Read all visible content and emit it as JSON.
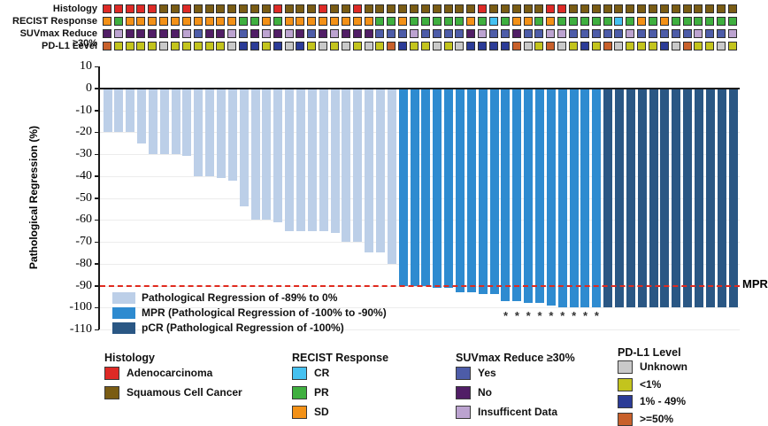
{
  "colors": {
    "A": "#de2a26",
    "S": "#7a5c14",
    "SD": "#f39117",
    "PR": "#3faf3f",
    "CR": "#45c1f0",
    "Y": "#4d5ca8",
    "N": "#511e66",
    "I": "#bca3d0",
    "U": "#c9c9c9",
    "L": "#c3c41d",
    "M": "#2b3b97",
    "H": "#c8602b",
    "bar_light": "#bccfe8",
    "bar_mpr": "#2e8bd0",
    "bar_pcr": "#2a5784",
    "mpr_line": "#e02a1e",
    "zero_line": "#1a1a1a",
    "grid": "#ececec"
  },
  "tracks": {
    "labels": [
      "Histology",
      "RECIST Response",
      "SUVmax Reduce ≥30%",
      "PD-L1 Level"
    ],
    "rows": [
      [
        "A",
        "A",
        "A",
        "A",
        "A",
        "S",
        "S",
        "A",
        "S",
        "S",
        "S",
        "S",
        "S",
        "S",
        "S",
        "A",
        "S",
        "S",
        "S",
        "A",
        "S",
        "S",
        "A",
        "S",
        "S",
        "S",
        "S",
        "S",
        "S",
        "S",
        "S",
        "S",
        "S",
        "A",
        "S",
        "S",
        "S",
        "S",
        "S",
        "A",
        "A",
        "S",
        "S",
        "S",
        "S",
        "S",
        "S",
        "S",
        "S",
        "S",
        "S",
        "S",
        "S",
        "S",
        "S",
        "S"
      ],
      [
        "SD",
        "PR",
        "SD",
        "SD",
        "SD",
        "SD",
        "SD",
        "SD",
        "SD",
        "SD",
        "SD",
        "SD",
        "PR",
        "PR",
        "SD",
        "PR",
        "SD",
        "SD",
        "SD",
        "SD",
        "SD",
        "SD",
        "SD",
        "SD",
        "PR",
        "PR",
        "SD",
        "PR",
        "PR",
        "PR",
        "PR",
        "PR",
        "SD",
        "PR",
        "CR",
        "PR",
        "SD",
        "SD",
        "PR",
        "SD",
        "PR",
        "PR",
        "PR",
        "PR",
        "PR",
        "CR",
        "PR",
        "SD",
        "PR",
        "SD",
        "PR",
        "PR",
        "PR",
        "PR",
        "PR",
        "PR"
      ],
      [
        "N",
        "I",
        "N",
        "N",
        "N",
        "N",
        "N",
        "I",
        "Y",
        "N",
        "N",
        "I",
        "Y",
        "N",
        "I",
        "N",
        "I",
        "N",
        "Y",
        "N",
        "I",
        "N",
        "N",
        "N",
        "Y",
        "Y",
        "Y",
        "I",
        "Y",
        "Y",
        "Y",
        "Y",
        "N",
        "I",
        "Y",
        "Y",
        "N",
        "Y",
        "Y",
        "I",
        "I",
        "Y",
        "Y",
        "Y",
        "Y",
        "Y",
        "I",
        "Y",
        "Y",
        "Y",
        "Y",
        "Y",
        "I",
        "Y",
        "Y",
        "I"
      ],
      [
        "H",
        "L",
        "L",
        "L",
        "L",
        "U",
        "L",
        "L",
        "L",
        "L",
        "L",
        "U",
        "M",
        "M",
        "L",
        "M",
        "U",
        "M",
        "L",
        "U",
        "L",
        "U",
        "L",
        "U",
        "L",
        "H",
        "M",
        "L",
        "L",
        "U",
        "L",
        "U",
        "M",
        "M",
        "M",
        "M",
        "H",
        "U",
        "L",
        "H",
        "U",
        "L",
        "M",
        "L",
        "H",
        "U",
        "L",
        "L",
        "L",
        "M",
        "U",
        "H",
        "L",
        "L",
        "U",
        "L"
      ]
    ]
  },
  "chart_data": {
    "type": "bar",
    "title": "",
    "ylabel": "Pathological Regression (%)",
    "ylim": [
      -110,
      10
    ],
    "yticks": [
      10,
      0,
      -10,
      -20,
      -30,
      -40,
      -50,
      -60,
      -70,
      -80,
      -90,
      -100,
      -110
    ],
    "grid": true,
    "n_patients": 56,
    "values": [
      -20,
      -20,
      -20,
      -25,
      -30,
      -30,
      -30,
      -31,
      -40,
      -40,
      -41,
      -42,
      -54,
      -60,
      -60,
      -61,
      -65,
      -65,
      -65,
      -65,
      -66,
      -70,
      -70,
      -75,
      -75,
      -80,
      -90,
      -90,
      -90,
      -91,
      -91,
      -93,
      -93,
      -94,
      -94,
      -97,
      -97,
      -98,
      -98,
      -99,
      -100,
      -100,
      -100,
      -100,
      -100,
      -100,
      -100,
      -100,
      -100,
      -100,
      -100,
      -100,
      -100,
      -100,
      -100,
      -100
    ],
    "group_counts": {
      "light": 26,
      "mpr": 18,
      "pcr": 12
    },
    "group_color_keys": {
      "light": "bar_light",
      "mpr": "bar_mpr",
      "pcr": "bar_pcr"
    },
    "asterisk_columns_1based": [
      36,
      37,
      38,
      39,
      40,
      41,
      42,
      43,
      44
    ],
    "asterisk_char": "*",
    "mpr_threshold": -90,
    "mpr_label": "MPR",
    "annotations": {
      "histology_codes": {
        "A": "Adenocarcinoma",
        "S": "Squamous Cell Cancer"
      },
      "recist_codes": {
        "CR": "CR",
        "PR": "PR",
        "SD": "SD"
      },
      "suvmax_codes": {
        "Y": "Yes",
        "N": "No",
        "I": "Insufficent Data"
      },
      "pdl1_codes": {
        "U": "Unknown",
        "L": "<1%",
        "M": "1% - 49%",
        "H": ">=50%"
      }
    }
  },
  "inchart_legend": [
    {
      "color_key": "bar_light",
      "label": "Pathological Regression of -89% to 0%"
    },
    {
      "color_key": "bar_mpr",
      "label": "MPR (Pathological Regression of -100% to -90%)"
    },
    {
      "color_key": "bar_pcr",
      "label": "pCR (Pathological Regression of -100%)"
    }
  ],
  "bottom_legend": [
    {
      "title": "Histology",
      "items": [
        {
          "key": "A",
          "label": "Adenocarcinoma"
        },
        {
          "key": "S",
          "label": "Squamous Cell Cancer"
        }
      ]
    },
    {
      "title": "RECIST Response",
      "items": [
        {
          "key": "CR",
          "label": "CR"
        },
        {
          "key": "PR",
          "label": "PR"
        },
        {
          "key": "SD",
          "label": "SD"
        }
      ]
    },
    {
      "title": "SUVmax Reduce ≥30%",
      "items": [
        {
          "key": "Y",
          "label": "Yes"
        },
        {
          "key": "N",
          "label": "No"
        },
        {
          "key": "I",
          "label": "Insufficent Data"
        }
      ]
    },
    {
      "title": "PD-L1 Level",
      "items": [
        {
          "key": "U",
          "label": "Unknown"
        },
        {
          "key": "L",
          "label": "<1%"
        },
        {
          "key": "M",
          "label": "1% - 49%"
        },
        {
          "key": "H",
          "label": ">=50%"
        }
      ]
    }
  ]
}
